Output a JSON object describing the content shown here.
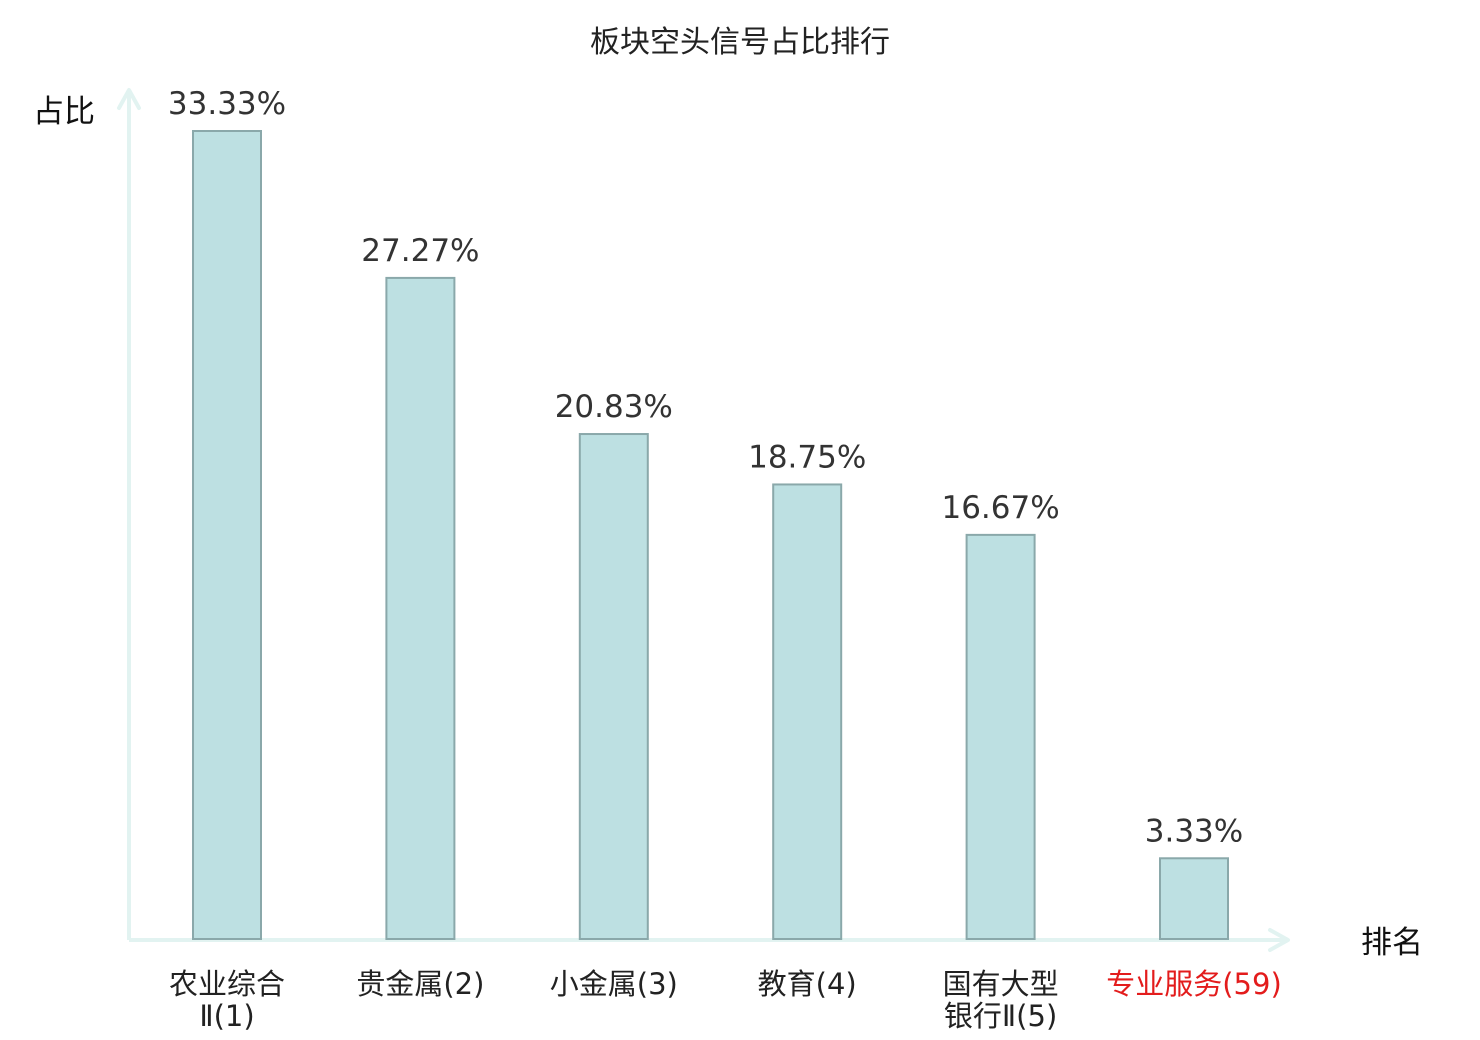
{
  "chart_data": {
    "type": "bar",
    "title": "板块空头信号占比排行",
    "ylabel": "占比",
    "xlabel": "排名",
    "categories": [
      [
        "农业综合",
        "Ⅱ(1)"
      ],
      [
        "贵金属(2)"
      ],
      [
        "小金属(3)"
      ],
      [
        "教育(4)"
      ],
      [
        "国有大型",
        "银行Ⅱ(5)"
      ],
      [
        "专业服务(59)"
      ]
    ],
    "values": [
      33.33,
      27.27,
      20.83,
      18.75,
      16.67,
      3.33
    ],
    "value_labels": [
      "33.33%",
      "27.27%",
      "20.83%",
      "18.75%",
      "16.67%",
      "3.33%"
    ],
    "highlight_index": 5,
    "ylim": [
      0,
      35
    ],
    "grid": false,
    "colors": {
      "bar_fill": "#bde0e2",
      "bar_stroke": "#8aa8aa",
      "axis": "#e2f3f1",
      "category_text": "#222222",
      "highlight_text": "#e31c1c"
    }
  }
}
